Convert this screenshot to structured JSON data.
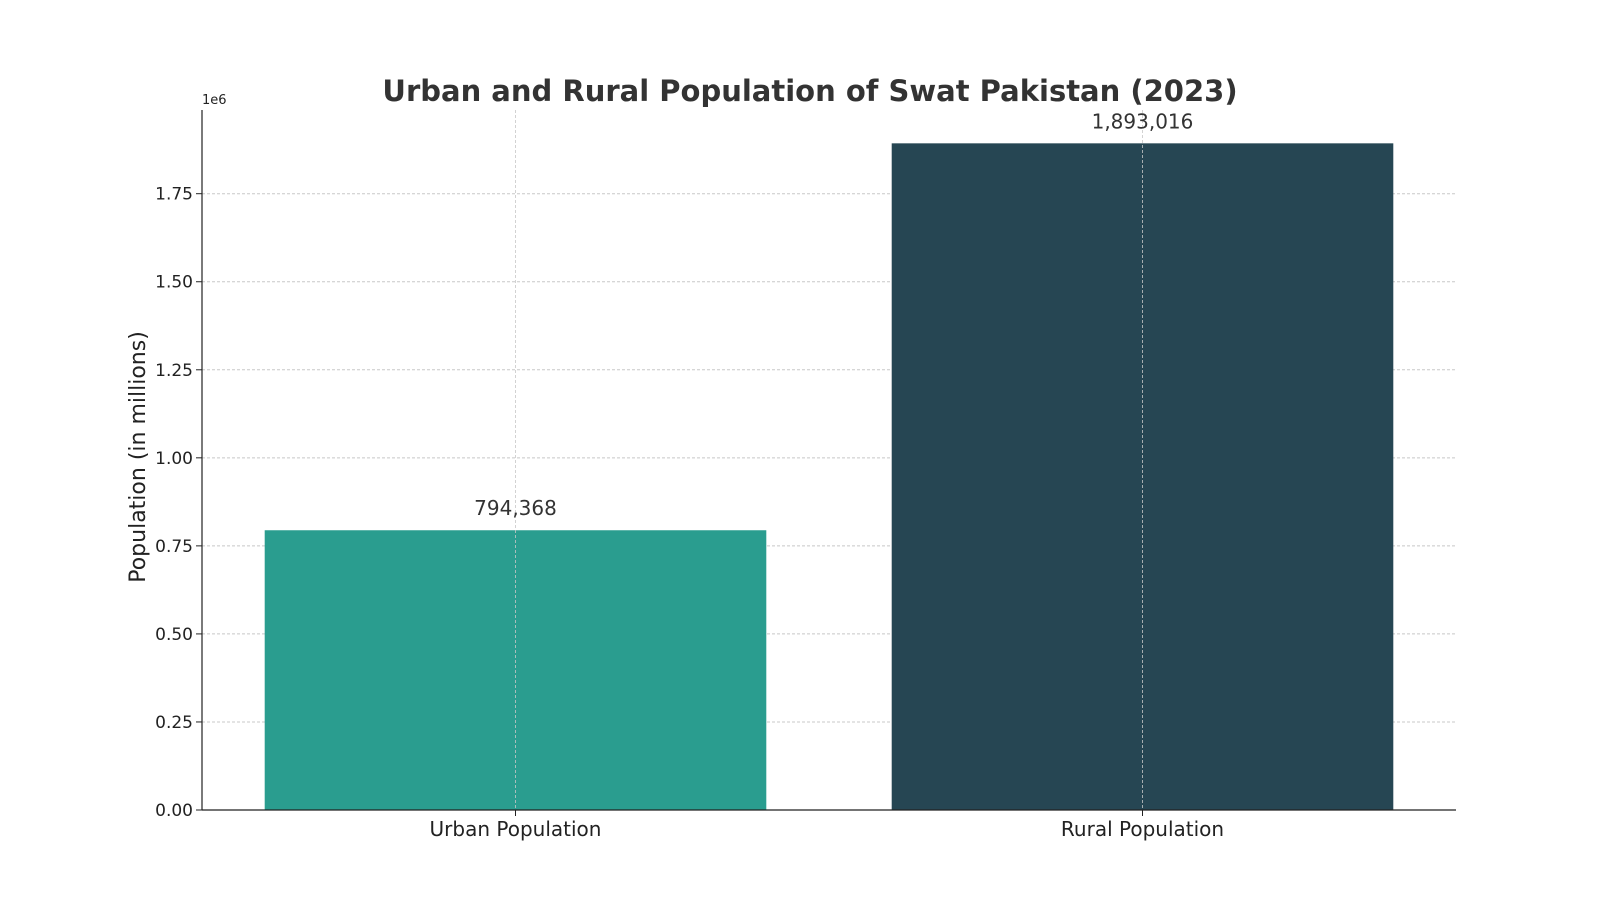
{
  "chart_data": {
    "type": "bar",
    "title": "Urban and Rural Population of Swat Pakistan (2023)",
    "xlabel": "",
    "ylabel": "Population (in millions)",
    "y_offset_label": "1e6",
    "categories": [
      "Urban Population",
      "Rural Population"
    ],
    "values": [
      794368,
      1893016
    ],
    "value_labels": [
      "794,368",
      "1,893,016"
    ],
    "colors": [
      "#2a9d8f",
      "#264653"
    ],
    "ylim": [
      0,
      1987666
    ],
    "yticks": [
      0,
      250000,
      500000,
      750000,
      1000000,
      1250000,
      1500000,
      1750000
    ],
    "ytick_labels": [
      "0.00",
      "0.25",
      "0.50",
      "0.75",
      "1.00",
      "1.25",
      "1.50",
      "1.75"
    ],
    "grid": true,
    "legend": "none"
  }
}
